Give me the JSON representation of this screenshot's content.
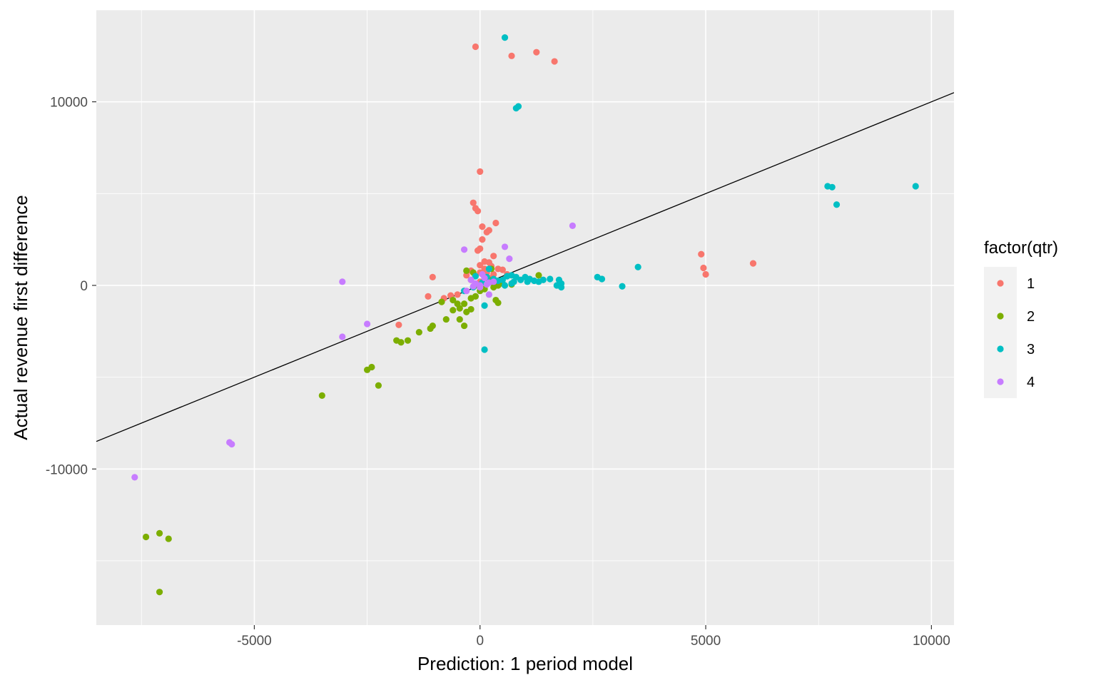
{
  "chart_data": {
    "type": "scatter",
    "title": "",
    "xlabel": "Prediction: 1 period model",
    "ylabel": "Actual revenue first difference",
    "xlim": [
      -8500,
      10500
    ],
    "ylim": [
      -18500,
      15000
    ],
    "x_ticks": [
      -5000,
      0,
      5000,
      10000
    ],
    "x_tick_labels": [
      "-5000",
      "0",
      "5000",
      "10000"
    ],
    "y_ticks": [
      -10000,
      0,
      10000
    ],
    "y_tick_labels": [
      "-10000",
      "0",
      "10000"
    ],
    "grid": true,
    "legend_position": "right",
    "legend_title": "factor(qtr)",
    "reference_line": {
      "slope": 1,
      "intercept": 0
    },
    "series": [
      {
        "name": "1",
        "color": "#F8766D",
        "points": [
          [
            -100,
            13000
          ],
          [
            700,
            12500
          ],
          [
            1250,
            12700
          ],
          [
            1650,
            12200
          ],
          [
            0,
            6200
          ],
          [
            -150,
            4500
          ],
          [
            -100,
            4200
          ],
          [
            -50,
            4050
          ],
          [
            350,
            3400
          ],
          [
            50,
            3200
          ],
          [
            200,
            3000
          ],
          [
            150,
            2900
          ],
          [
            50,
            2500
          ],
          [
            0,
            2000
          ],
          [
            -50,
            1900
          ],
          [
            300,
            1600
          ],
          [
            100,
            1300
          ],
          [
            200,
            1250
          ],
          [
            0,
            1100
          ],
          [
            250,
            1050
          ],
          [
            100,
            900
          ],
          [
            400,
            900
          ],
          [
            500,
            850
          ],
          [
            -200,
            800
          ],
          [
            0,
            700
          ],
          [
            150,
            700
          ],
          [
            300,
            600
          ],
          [
            -300,
            550
          ],
          [
            -1050,
            450
          ],
          [
            -1150,
            -600
          ],
          [
            -800,
            -700
          ],
          [
            -500,
            -500
          ],
          [
            -650,
            -550
          ],
          [
            -1800,
            -2150
          ],
          [
            4900,
            1700
          ],
          [
            4950,
            950
          ],
          [
            5000,
            600
          ],
          [
            6050,
            1200
          ],
          [
            600,
            600
          ],
          [
            0,
            200
          ],
          [
            -200,
            300
          ],
          [
            200,
            400
          ]
        ]
      },
      {
        "name": "2",
        "color": "#7CAE00",
        "points": [
          [
            -7400,
            -13700
          ],
          [
            -7100,
            -13500
          ],
          [
            -6900,
            -13800
          ],
          [
            -7100,
            -16700
          ],
          [
            -3500,
            -6000
          ],
          [
            -2250,
            -5450
          ],
          [
            -2400,
            -4450
          ],
          [
            -2500,
            -4600
          ],
          [
            -1850,
            -3000
          ],
          [
            -1750,
            -3100
          ],
          [
            -1600,
            -3000
          ],
          [
            -1350,
            -2550
          ],
          [
            -1050,
            -2200
          ],
          [
            -1100,
            -2350
          ],
          [
            -750,
            -1850
          ],
          [
            -450,
            -1850
          ],
          [
            -350,
            -2200
          ],
          [
            -600,
            -1350
          ],
          [
            -450,
            -1250
          ],
          [
            -300,
            -1450
          ],
          [
            -200,
            -1300
          ],
          [
            -500,
            -1000
          ],
          [
            -350,
            -1000
          ],
          [
            -850,
            -900
          ],
          [
            -600,
            -800
          ],
          [
            -200,
            -700
          ],
          [
            -100,
            -600
          ],
          [
            100,
            -200
          ],
          [
            300,
            -100
          ],
          [
            400,
            0
          ],
          [
            500,
            100
          ],
          [
            700,
            50
          ],
          [
            1300,
            550
          ],
          [
            350,
            -800
          ],
          [
            400,
            -950
          ],
          [
            -300,
            800
          ],
          [
            -150,
            700
          ],
          [
            250,
            900
          ],
          [
            200,
            300
          ],
          [
            300,
            200
          ],
          [
            -100,
            0
          ],
          [
            0,
            -300
          ]
        ]
      },
      {
        "name": "3",
        "color": "#00BFC4",
        "points": [
          [
            550,
            13500
          ],
          [
            800,
            9650
          ],
          [
            850,
            9750
          ],
          [
            7700,
            5400
          ],
          [
            7800,
            5350
          ],
          [
            7900,
            4400
          ],
          [
            9650,
            5400
          ],
          [
            3500,
            1000
          ],
          [
            3150,
            -50
          ],
          [
            2600,
            450
          ],
          [
            2700,
            350
          ],
          [
            1750,
            300
          ],
          [
            1800,
            100
          ],
          [
            1800,
            -100
          ],
          [
            1700,
            0
          ],
          [
            1550,
            350
          ],
          [
            1400,
            300
          ],
          [
            1300,
            200
          ],
          [
            1200,
            250
          ],
          [
            1050,
            200
          ],
          [
            1100,
            350
          ],
          [
            800,
            450
          ],
          [
            700,
            550
          ],
          [
            600,
            500
          ],
          [
            500,
            300
          ],
          [
            550,
            0
          ],
          [
            400,
            250
          ],
          [
            300,
            350
          ],
          [
            200,
            900
          ],
          [
            100,
            -1100
          ],
          [
            100,
            -3500
          ],
          [
            150,
            450
          ],
          [
            50,
            150
          ],
          [
            -150,
            -100
          ],
          [
            -100,
            500
          ],
          [
            -350,
            -300
          ],
          [
            700,
            100
          ],
          [
            750,
            200
          ],
          [
            900,
            300
          ],
          [
            1000,
            450
          ]
        ]
      },
      {
        "name": "4",
        "color": "#C77CFF",
        "points": [
          [
            -7650,
            -10450
          ],
          [
            -5550,
            -8550
          ],
          [
            -5500,
            -8650
          ],
          [
            -3050,
            200
          ],
          [
            -3050,
            -2800
          ],
          [
            -2500,
            -2100
          ],
          [
            -350,
            1950
          ],
          [
            550,
            2100
          ],
          [
            650,
            1450
          ],
          [
            2050,
            3250
          ],
          [
            200,
            -500
          ],
          [
            -100,
            100
          ],
          [
            0,
            -100
          ],
          [
            -200,
            300
          ],
          [
            300,
            200
          ],
          [
            100,
            400
          ],
          [
            150,
            50
          ],
          [
            -300,
            -300
          ],
          [
            50,
            600
          ],
          [
            200,
            150
          ],
          [
            -150,
            -50
          ],
          [
            0,
            0
          ]
        ]
      }
    ]
  }
}
